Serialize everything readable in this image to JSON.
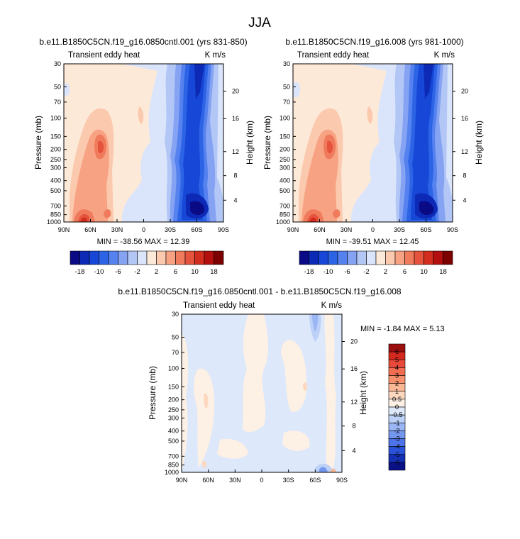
{
  "figure_title": "JJA",
  "chart_data": [
    {
      "id": "left",
      "type": "heatmap",
      "title": "b.e11.B1850C5CN.f19_g16.0850cntl.001 (yrs 831-850)",
      "subtitle_left": "Transient eddy heat",
      "subtitle_right": "K m/s",
      "ylabel": "Pressure (mb)",
      "ylabel_right": "Height (km)",
      "xticks": [
        "90N",
        "60N",
        "30N",
        "0",
        "30S",
        "60S",
        "90S"
      ],
      "yticks": [
        "30",
        "50",
        "70",
        "100",
        "150",
        "200",
        "250",
        "300",
        "400",
        "500",
        "700",
        "850",
        "1000"
      ],
      "height_ticks": [
        "20",
        "16",
        "12",
        "8",
        "4"
      ],
      "stats_text": "MIN = -38.56  MAX = 12.39",
      "min": -38.56,
      "max": 12.39,
      "colorbar": {
        "orientation": "horizontal",
        "labels": [
          "-18",
          "-10",
          "-6",
          "-2",
          "2",
          "6",
          "10",
          "18"
        ],
        "colors": [
          "#0a0a87",
          "#0c2ab5",
          "#1747d6",
          "#2d64e6",
          "#5582ef",
          "#85a3f2",
          "#b3c7f6",
          "#dae5fb",
          "#fde9d8",
          "#fbc9ad",
          "#f7a383",
          "#f07b5c",
          "#e5533d",
          "#d22d1f",
          "#b30f0e",
          "#7d0000"
        ]
      }
    },
    {
      "id": "right",
      "type": "heatmap",
      "title": "b.e11.B1850C5CN.f19_g16.008 (yrs 981-1000)",
      "subtitle_left": "Transient eddy heat",
      "subtitle_right": "K m/s",
      "ylabel": "Pressure (mb)",
      "ylabel_right": "Height (km)",
      "xticks": [
        "90N",
        "60N",
        "30N",
        "0",
        "30S",
        "60S",
        "90S"
      ],
      "yticks": [
        "30",
        "50",
        "70",
        "100",
        "150",
        "200",
        "250",
        "300",
        "400",
        "500",
        "700",
        "850",
        "1000"
      ],
      "height_ticks": [
        "20",
        "16",
        "12",
        "8",
        "4"
      ],
      "stats_text": "MIN = -39.51  MAX = 12.45",
      "min": -39.51,
      "max": 12.45,
      "colorbar": {
        "orientation": "horizontal",
        "labels": [
          "-18",
          "-10",
          "-6",
          "-2",
          "2",
          "6",
          "10",
          "18"
        ],
        "colors": [
          "#0a0a87",
          "#0c2ab5",
          "#1747d6",
          "#2d64e6",
          "#5582ef",
          "#85a3f2",
          "#b3c7f6",
          "#dae5fb",
          "#fde9d8",
          "#fbc9ad",
          "#f7a383",
          "#f07b5c",
          "#e5533d",
          "#d22d1f",
          "#b30f0e",
          "#7d0000"
        ]
      }
    },
    {
      "id": "diff",
      "type": "heatmap",
      "title": "b.e11.B1850C5CN.f19_g16.0850cntl.001 - b.e11.B1850C5CN.f19_g16.008",
      "subtitle_left": "Transient eddy heat",
      "subtitle_right": "K m/s",
      "ylabel": "Pressure (mb)",
      "ylabel_right": "Height (km)",
      "xticks": [
        "90N",
        "60N",
        "30N",
        "0",
        "30S",
        "60S",
        "90S"
      ],
      "yticks": [
        "30",
        "50",
        "70",
        "100",
        "150",
        "200",
        "250",
        "300",
        "400",
        "500",
        "700",
        "850",
        "1000"
      ],
      "height_ticks": [
        "20",
        "16",
        "12",
        "8",
        "4"
      ],
      "stats_text": "MIN = -1.84  MAX =  5.13",
      "min": -1.84,
      "max": 5.13,
      "colorbar": {
        "orientation": "vertical",
        "labels": [
          "6",
          "5",
          "4",
          "3",
          "2",
          "1",
          "0.5",
          "0",
          "-0.5",
          "-1",
          "-2",
          "-3",
          "-4",
          "-5",
          "-6"
        ],
        "colors": [
          "#9c0f0f",
          "#d2281e",
          "#e9493a",
          "#f26c52",
          "#f7916d",
          "#fab795",
          "#fdd8c0",
          "#fdf0e4",
          "#dde8fb",
          "#bcd0f8",
          "#9ab6f4",
          "#7396ef",
          "#4c74e8",
          "#2a52d9",
          "#1430b4",
          "#0a1187"
        ]
      }
    }
  ]
}
